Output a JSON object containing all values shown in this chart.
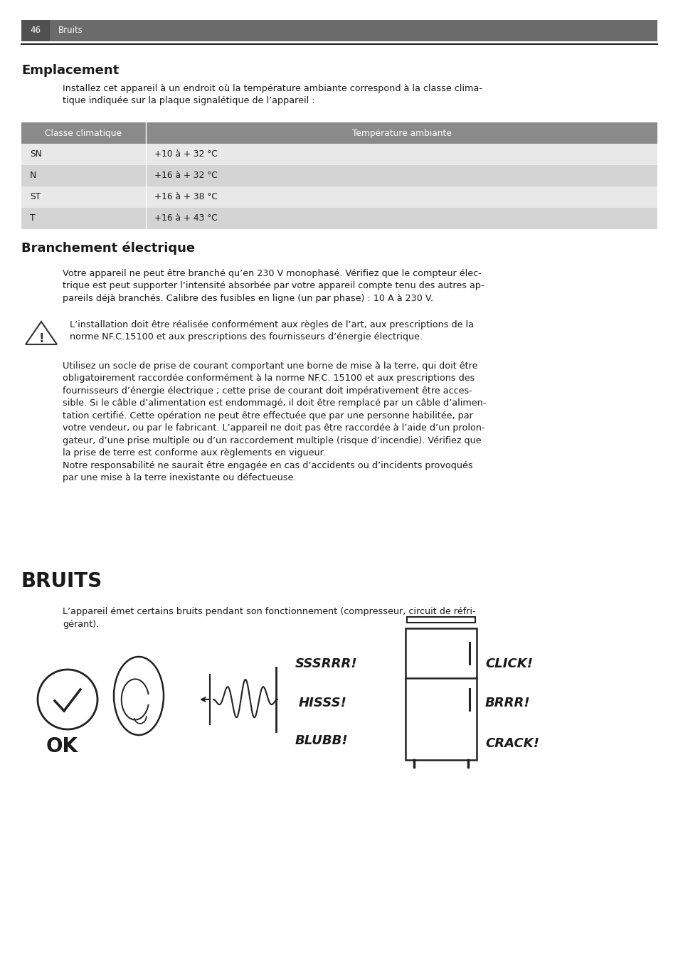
{
  "page_number": "46",
  "page_header_text": "Bruits",
  "background_color": "#ffffff",
  "header_bg_color": "#6b6b6b",
  "header_num_bg_color": "#505050",
  "table_header_bg": "#8a8a8a",
  "table_row_bg_odd": "#d4d4d4",
  "table_row_bg_even": "#e8e8e8",
  "section1_title": "Emplacement",
  "section1_intro": "Installez cet appareil à un endroit où la température ambiante correspond à la classe clima-\ntique indiquée sur la plaque signalétique de l’appareil :",
  "table_headers": [
    "Classe climatique",
    "Température ambiante"
  ],
  "table_rows": [
    [
      "SN",
      "+10 à + 32 °C"
    ],
    [
      "N",
      "+16 à + 32 °C"
    ],
    [
      "ST",
      "+16 à + 38 °C"
    ],
    [
      "T",
      "+16 à + 43 °C"
    ]
  ],
  "section2_title": "Branchement électrique",
  "section2_para1": "Votre appareil ne peut être branché qu’en 230 V monophasé. Vérifiez que le compteur élec-\ntrique est peut supporter l’intensité absorbée par votre appareil compte tenu des autres ap-\npareils déjà branchés. Calibre des fusibles en ligne (un par phase) : 10 A à 230 V.",
  "section2_warning": "L’installation doit être réalisée conformément aux règles de l’art, aux prescriptions de la\nnorme NF.C.15100 et aux prescriptions des fournisseurs d’énergie électrique.",
  "section2_para2": "Utilisez un socle de prise de courant comportant une borne de mise à la terre, qui doit être\nobligatoirement raccordée conformément à la norme NF.C. 15100 et aux prescriptions des\nfournisseurs d’énergie électrique ; cette prise de courant doit impérativement être acces-\nsible. Si le câble d’alimentation est endommagé, il doit être remplacé par un câble d’alimen-\ntation certifié. Cette opération ne peut être effectuée que par une personne habilitée, par\nvotre vendeur, ou par le fabricant. L’appareil ne doit pas être raccordée à l’aide d’un prolon-\ngateur, d’une prise multiple ou d’un raccordement multiple (risque d’incendie). Vérifiez que\nla prise de terre est conforme aux règlements en vigueur.\nNotre responsabilité ne saurait être engagée en cas d’accidents ou d’incidents provoqués\npar une mise à la terre inexistante ou défectueuse.",
  "section3_title": "BRUITS",
  "section3_para1": "L’appareil émet certains bruits pendant son fonctionnement (compresseur, circuit de réfri-\ngérant).",
  "text_color": "#1a1a1a",
  "noise_left": [
    "SSSRRR!",
    "HISSS!",
    "BLUBB!"
  ],
  "noise_right": [
    "CLICK!",
    "BRRR!",
    "CRACK!"
  ]
}
